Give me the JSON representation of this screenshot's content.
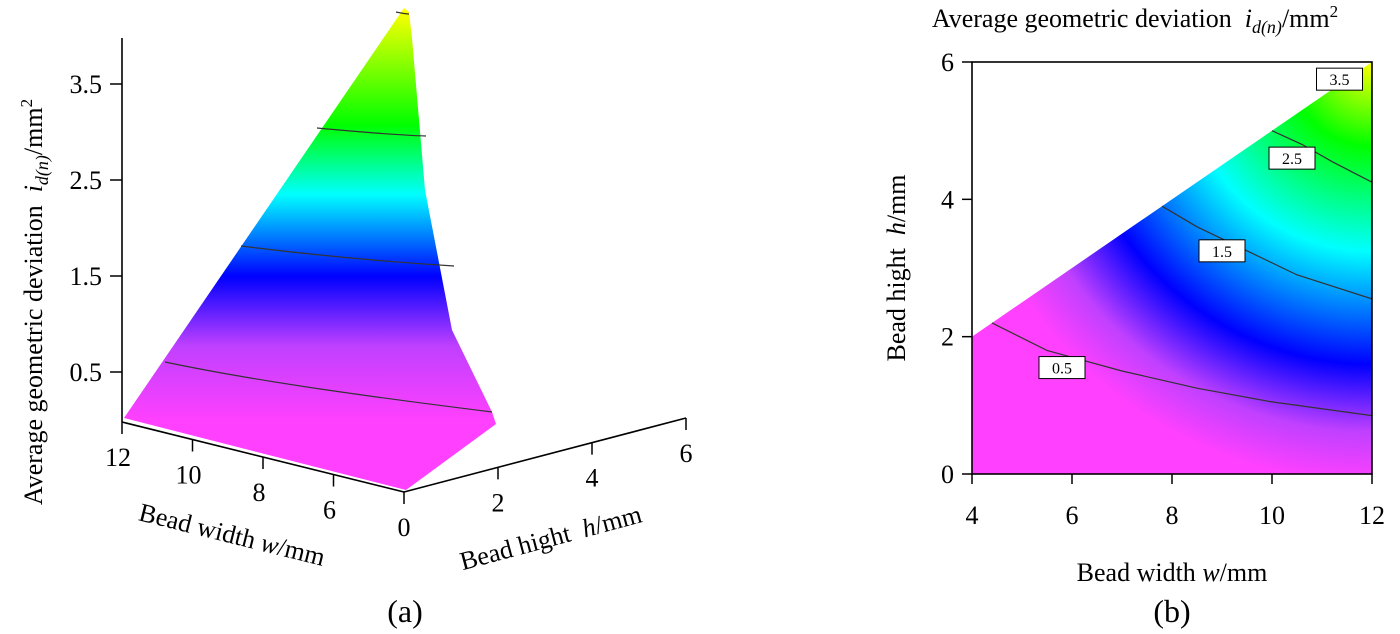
{
  "chart_data": [
    {
      "panel": "(a)",
      "type": "surface3d",
      "zlabel": {
        "prefix": "Average geometric deviation  ",
        "var": "i",
        "sub": "d(n)",
        "unit": "/mm",
        "sup": "2"
      },
      "xlabel": {
        "prefix": "Bead width ",
        "var": "w",
        "unit": "/mm"
      },
      "ylabel": {
        "prefix": "Bead hight  ",
        "var": "h",
        "unit": "/mm"
      },
      "z_ticks": [
        "0.5",
        "1.5",
        "2.5",
        "3.5"
      ],
      "z_tick_values": [
        0.5,
        1.5,
        2.5,
        3.5
      ],
      "w_ticks": [
        "12",
        "10",
        "8",
        "6"
      ],
      "w_tick_values": [
        12,
        10,
        8,
        6
      ],
      "h_ticks": [
        "0",
        "2",
        "4",
        "6"
      ],
      "h_tick_values": [
        0,
        2,
        4,
        6
      ],
      "w_range": [
        4,
        12
      ],
      "h_range": [
        0,
        6
      ],
      "z_range": [
        0,
        4.0
      ],
      "valid_region": "h <= w/2",
      "contour_levels": [
        0.5,
        1.5,
        2.5,
        3.5
      ],
      "colormap": [
        "#ff40ff",
        "#0000ff",
        "#00ffff",
        "#00ff00",
        "#ffff00"
      ],
      "caption": "(a)"
    },
    {
      "panel": "(b)",
      "type": "contour",
      "title": {
        "prefix": "Average geometric deviation  ",
        "var": "i",
        "sub": "d(n)",
        "unit": "/mm",
        "sup": "2"
      },
      "xlabel": {
        "prefix": "Bead width ",
        "var": "w",
        "unit": "/mm"
      },
      "ylabel": {
        "prefix": "Bead hight  ",
        "var": "h",
        "unit": "/mm"
      },
      "x_ticks": [
        "4",
        "6",
        "8",
        "10",
        "12"
      ],
      "x_tick_values": [
        4,
        6,
        8,
        10,
        12
      ],
      "y_ticks": [
        "0",
        "2",
        "4",
        "6"
      ],
      "y_tick_values": [
        0,
        2,
        4,
        6
      ],
      "xlim": [
        4,
        12
      ],
      "ylim": [
        0,
        6
      ],
      "valid_region": "h <= w/2",
      "contours": [
        {
          "level": 0.5,
          "label": "0.5",
          "points": [
            [
              4.4,
              2.2
            ],
            [
              5.5,
              1.8
            ],
            [
              7.0,
              1.5
            ],
            [
              8.5,
              1.25
            ],
            [
              10.0,
              1.05
            ],
            [
              12.0,
              0.85
            ]
          ],
          "label_at": [
            5.8,
            1.55
          ]
        },
        {
          "level": 1.5,
          "label": "1.5",
          "points": [
            [
              7.8,
              3.9
            ],
            [
              8.5,
              3.6
            ],
            [
              9.5,
              3.25
            ],
            [
              10.5,
              2.9
            ],
            [
              12.0,
              2.55
            ]
          ],
          "label_at": [
            9.0,
            3.25
          ]
        },
        {
          "level": 2.5,
          "label": "2.5",
          "points": [
            [
              10.0,
              5.0
            ],
            [
              10.6,
              4.8
            ],
            [
              11.2,
              4.55
            ],
            [
              12.0,
              4.25
            ]
          ],
          "label_at": [
            10.4,
            4.6
          ]
        },
        {
          "level": 3.5,
          "label": "3.5",
          "points": [],
          "label_at": [
            11.35,
            5.75
          ]
        }
      ],
      "colormap": [
        "#ff40ff",
        "#0000ff",
        "#00ffff",
        "#00ff00",
        "#ffff00"
      ],
      "caption": "(b)"
    }
  ]
}
